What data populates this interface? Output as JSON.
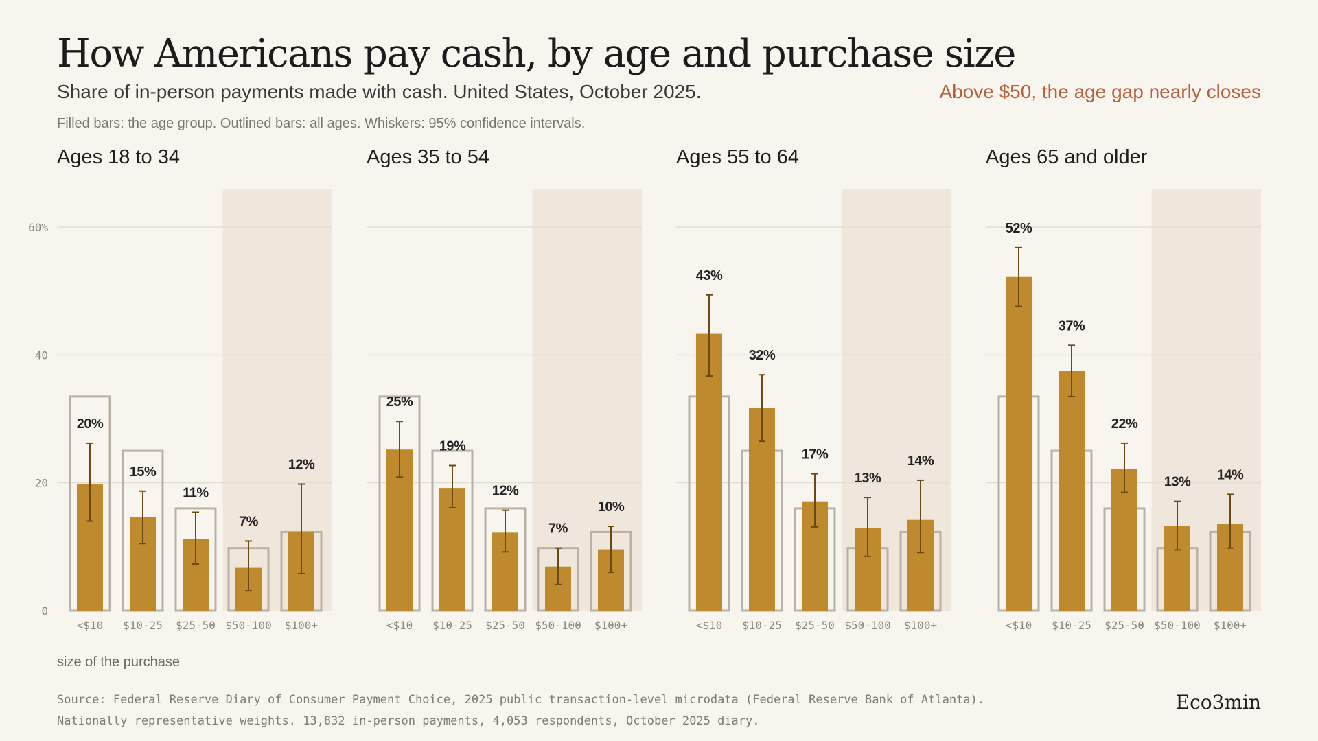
{
  "header": {
    "title": "How Americans pay cash, by age and purchase size",
    "subtitle": "Share of in-person payments made with cash. United States, October 2025.",
    "callout": "Above $50, the age gap nearly closes",
    "note": "Filled bars: the age group. Outlined bars: all ages. Whiskers: 95% confidence intervals."
  },
  "footer": {
    "source_line1": "Source: Federal Reserve Diary of Consumer Payment Choice, 2025 public transaction-level microdata (Federal Reserve Bank of Atlanta).",
    "source_line2": "Nationally representative weights. 13,832 in-person payments, 4,053 respondents, October 2025 diary.",
    "brand": "Eco3min"
  },
  "colors": {
    "bar_fill": "#bf8a2e",
    "outline": "#b9b2a4",
    "whisker": "#6b4a12",
    "highlight_band": "#efe7db",
    "grid": "#e3ddd2",
    "callout": "#b5603f"
  },
  "chart_data": {
    "type": "bar",
    "categories": [
      "<$10",
      "$10-25",
      "$25-50",
      "$50-100",
      "$100+"
    ],
    "xlabel": "size of the purchase",
    "ylim": [
      0,
      66
    ],
    "yticks": [
      0,
      20,
      40,
      60
    ],
    "ytick_labels": [
      "0",
      "20",
      "40",
      "60%"
    ],
    "highlight_categories": [
      "$50-100",
      "$100+"
    ],
    "all_ages": [
      33.5,
      25.0,
      16.0,
      9.8,
      12.3
    ],
    "panels": [
      {
        "title": "Ages 18 to 34",
        "values": [
          19.8,
          14.6,
          11.2,
          6.7,
          12.3
        ],
        "ci_low": [
          14.0,
          10.5,
          7.3,
          3.1,
          5.8
        ],
        "ci_high": [
          26.2,
          18.7,
          15.4,
          10.9,
          19.8
        ],
        "labels": [
          "20%",
          "15%",
          "11%",
          "7%",
          "12%"
        ]
      },
      {
        "title": "Ages 35 to 54",
        "values": [
          25.2,
          19.2,
          12.2,
          6.9,
          9.6
        ],
        "ci_low": [
          20.9,
          16.1,
          9.2,
          4.1,
          6.0
        ],
        "ci_high": [
          29.6,
          22.7,
          15.7,
          9.8,
          13.2
        ],
        "labels": [
          "25%",
          "19%",
          "12%",
          "7%",
          "10%"
        ]
      },
      {
        "title": "Ages 55 to 64",
        "values": [
          43.3,
          31.7,
          17.1,
          12.9,
          14.2
        ],
        "ci_low": [
          36.7,
          26.5,
          13.1,
          8.5,
          9.1
        ],
        "ci_high": [
          49.4,
          36.9,
          21.4,
          17.7,
          20.4
        ],
        "labels": [
          "43%",
          "32%",
          "17%",
          "13%",
          "14%"
        ]
      },
      {
        "title": "Ages 65 and older",
        "values": [
          52.3,
          37.5,
          22.2,
          13.3,
          13.6
        ],
        "ci_low": [
          47.6,
          33.5,
          18.5,
          9.5,
          9.8
        ],
        "ci_high": [
          56.8,
          41.5,
          26.2,
          17.1,
          18.2
        ],
        "labels": [
          "52%",
          "37%",
          "22%",
          "13%",
          "14%"
        ]
      }
    ]
  }
}
